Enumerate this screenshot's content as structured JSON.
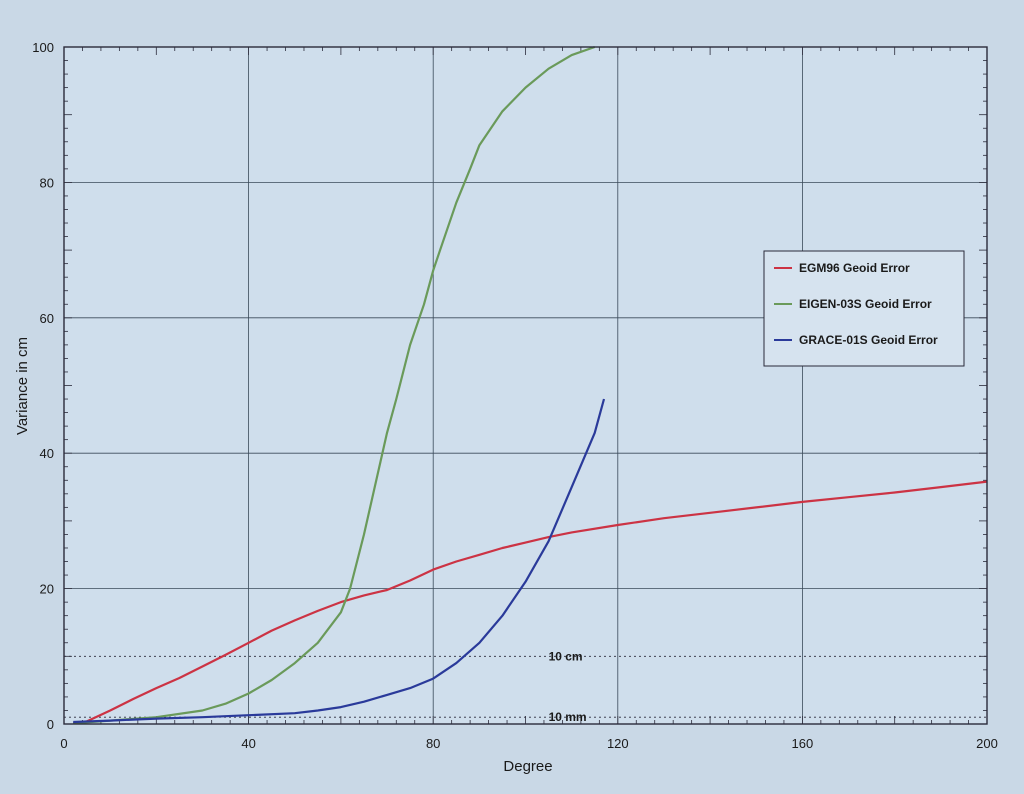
{
  "chart_data": {
    "type": "line",
    "xlabel": "Degree",
    "ylabel": "Variance in cm",
    "xlim": [
      0,
      200
    ],
    "ylim": [
      0,
      100
    ],
    "xticks": [
      0,
      40,
      80,
      120,
      160,
      200
    ],
    "yticks": [
      0,
      20,
      40,
      60,
      80,
      100
    ],
    "grid": true,
    "legend_position": "right",
    "series": [
      {
        "name": "EGM96 Geoid Error",
        "color": "#cc3344",
        "x": [
          2,
          5,
          10,
          15,
          20,
          25,
          30,
          35,
          40,
          45,
          50,
          55,
          60,
          65,
          70,
          75,
          80,
          85,
          90,
          95,
          100,
          105,
          110,
          120,
          130,
          140,
          150,
          160,
          170,
          180,
          190,
          200
        ],
        "y": [
          0.1,
          0.4,
          2.0,
          3.7,
          5.3,
          6.8,
          8.5,
          10.2,
          12.0,
          13.8,
          15.3,
          16.7,
          18.0,
          19.0,
          19.8,
          21.2,
          22.8,
          24.0,
          25.0,
          26.0,
          26.8,
          27.6,
          28.3,
          29.4,
          30.4,
          31.2,
          32.0,
          32.8,
          33.5,
          34.2,
          35.0,
          35.8
        ]
      },
      {
        "name": "EIGEN-03S Geoid Error",
        "color": "#6a9a5a",
        "x": [
          2,
          10,
          20,
          30,
          35,
          40,
          45,
          50,
          55,
          60,
          62,
          65,
          68,
          70,
          72,
          75,
          78,
          80,
          82,
          85,
          88,
          90,
          95,
          100,
          105,
          110,
          115
        ],
        "y": [
          0.1,
          0.5,
          1.0,
          2.0,
          3.0,
          4.5,
          6.5,
          9.0,
          12.0,
          16.5,
          20.0,
          28.0,
          37.0,
          43.0,
          48.0,
          56.0,
          62.0,
          67.0,
          71.0,
          77.0,
          82.0,
          85.5,
          90.5,
          94.0,
          96.8,
          98.8,
          100.0
        ]
      },
      {
        "name": "GRACE-01S Geoid Error",
        "color": "#2a3a9a",
        "x": [
          2,
          10,
          20,
          30,
          40,
          50,
          55,
          60,
          65,
          70,
          75,
          80,
          85,
          90,
          95,
          100,
          105,
          110,
          115,
          117
        ],
        "y": [
          0.3,
          0.5,
          0.8,
          1.0,
          1.3,
          1.6,
          2.0,
          2.5,
          3.3,
          4.3,
          5.3,
          6.7,
          9.0,
          12.0,
          16.0,
          21.0,
          27.0,
          35.0,
          43.0,
          48.0
        ]
      }
    ],
    "reference_lines": [
      {
        "label": "10 cm",
        "value": 10,
        "label_x": 105
      },
      {
        "label": "10 mm",
        "value": 1,
        "label_x": 105
      }
    ]
  }
}
